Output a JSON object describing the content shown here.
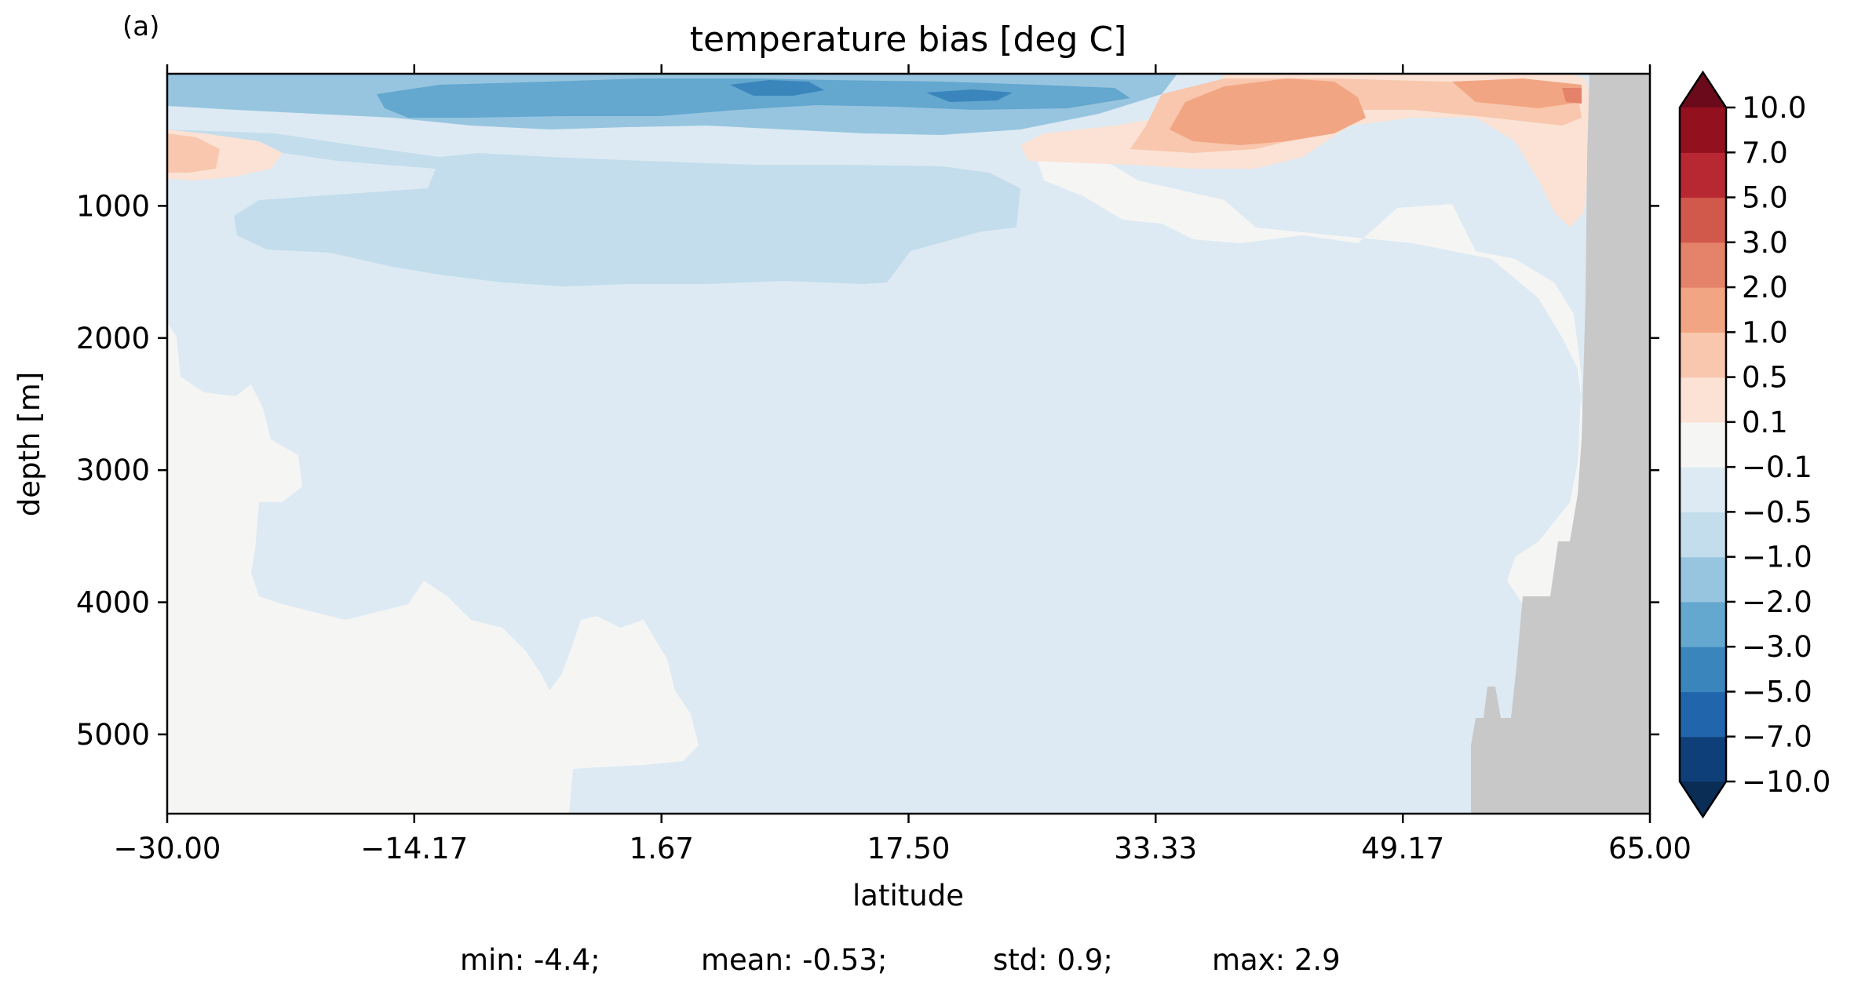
{
  "panel_label": "(a)",
  "chart_data": {
    "type": "heatmap",
    "title": "temperature bias [deg C]",
    "xlabel": "latitude",
    "ylabel": "depth [m]",
    "xlim": [
      -30.0,
      65.0
    ],
    "ylim": [
      5600,
      0
    ],
    "y_inverted": true,
    "x_ticks": [
      "−30.00",
      "−14.17",
      "1.67",
      "17.50",
      "33.33",
      "49.17",
      "65.00"
    ],
    "x_tick_values": [
      -30.0,
      -14.17,
      1.67,
      17.5,
      33.33,
      49.17,
      65.0
    ],
    "y_ticks": [
      "1000",
      "2000",
      "3000",
      "4000",
      "5000"
    ],
    "y_tick_values": [
      1000,
      2000,
      3000,
      4000,
      5000
    ],
    "colorbar": {
      "levels": [
        -10.0,
        -7.0,
        -5.0,
        -3.0,
        -2.0,
        -1.0,
        -0.5,
        -0.1,
        0.1,
        0.5,
        1.0,
        2.0,
        3.0,
        5.0,
        7.0,
        10.0
      ],
      "tick_labels": [
        "10.0",
        "7.0",
        "5.0",
        "3.0",
        "2.0",
        "1.0",
        "0.5",
        "0.1",
        "−0.1",
        "−0.5",
        "−1.0",
        "−2.0",
        "−3.0",
        "−5.0",
        "−7.0",
        "−10.0"
      ],
      "colors_bottom_to_top": [
        "#0e3f78",
        "#2166ac",
        "#3a85bc",
        "#64a7cf",
        "#97c5df",
        "#c3ddec",
        "#ddeaf3",
        "#f5f5f4",
        "#fbe2d5",
        "#f8c7ad",
        "#f2a583",
        "#e4826a",
        "#d1594c",
        "#b82833",
        "#93101f"
      ],
      "extend_low_color": "#0a2d56",
      "extend_high_color": "#6b0a1b",
      "land_color": "#c8c8c8"
    },
    "stats": {
      "min_label": "min: -4.4;",
      "mean_label": "mean: -0.53;",
      "std_label": "std: 0.9;",
      "max_label": "max: 2.9"
    }
  }
}
